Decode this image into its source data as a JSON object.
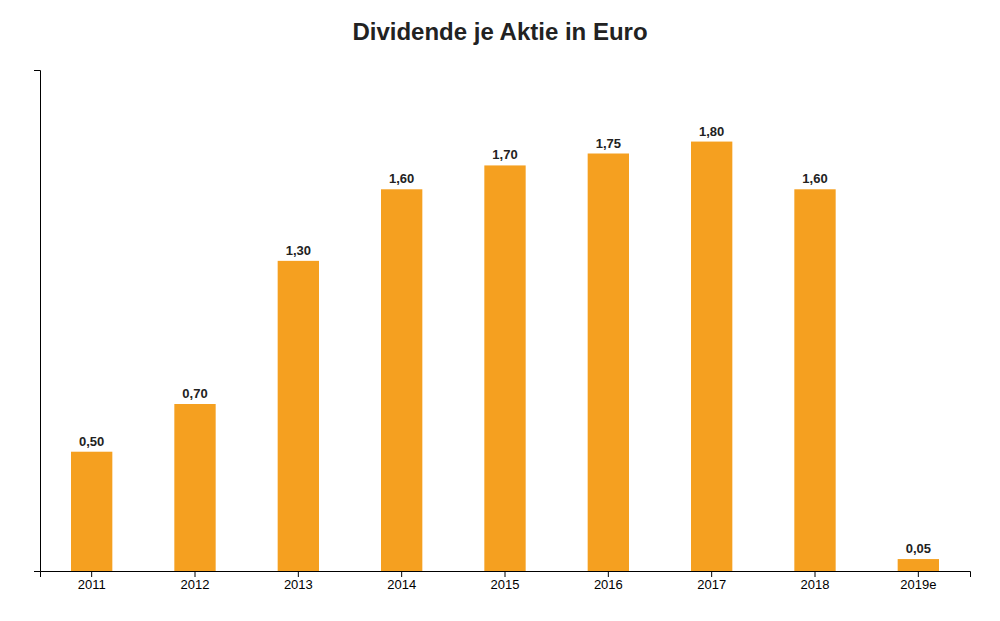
{
  "chart_data": {
    "type": "bar",
    "title": "Dividende je Aktie in Euro",
    "categories": [
      "2011",
      "2012",
      "2013",
      "2014",
      "2015",
      "2016",
      "2017",
      "2018",
      "2019e"
    ],
    "values": [
      0.5,
      0.7,
      1.3,
      1.6,
      1.7,
      1.75,
      1.8,
      1.6,
      0.05
    ],
    "value_labels": [
      "0,50",
      "0,70",
      "1,30",
      "1,60",
      "1,70",
      "1,75",
      "1,80",
      "1,60",
      "0,05"
    ],
    "data_labels": true,
    "color": "#F5A020",
    "ylim": [
      0,
      2.1
    ],
    "tick_labels": "x",
    "grid": false
  }
}
